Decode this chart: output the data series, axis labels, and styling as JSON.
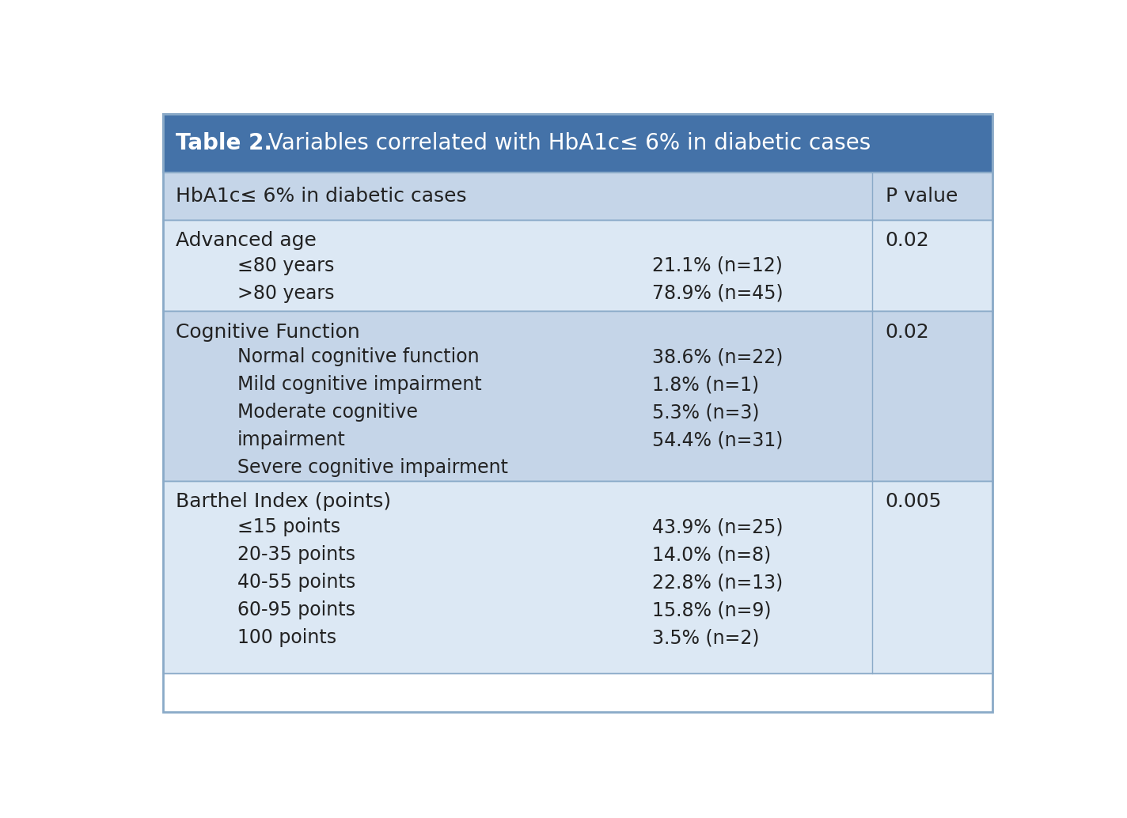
{
  "title_bold": "Table 2.",
  "title_rest": " Variables correlated with HbA1c≤ 6% in diabetic cases",
  "title_bg": "#4472a8",
  "title_color": "#ffffff",
  "header_bg": "#c5d5e8",
  "row_bg_1": "#dce8f4",
  "row_bg_2": "#c5d5e8",
  "border_color": "#8aaac8",
  "text_color": "#1a1a2e",
  "col1_header": "HbA1c≤ 6% in diabetic cases",
  "col3_header": "P value",
  "sections": [
    {
      "header": "Advanced age",
      "subrows": [
        [
          "≤80 years",
          "21.1% (n=12)"
        ],
        [
          ">80 years",
          "78.9% (n=45)"
        ]
      ],
      "p_value": "0.02",
      "bg": "row_bg_1"
    },
    {
      "header": "Cognitive Function",
      "subrows": [
        [
          "Normal cognitive function",
          "38.6% (n=22)"
        ],
        [
          "Mild cognitive impairment",
          "1.8% (n=1)"
        ],
        [
          "Moderate cognitive",
          "5.3% (n=3)"
        ],
        [
          "impairment",
          "54.4% (n=31)"
        ],
        [
          "Severe cognitive impairment",
          ""
        ]
      ],
      "p_value": "0.02",
      "bg": "row_bg_2"
    },
    {
      "header": "Barthel Index (points)",
      "subrows": [
        [
          "≤15 points",
          "43.9% (n=25)"
        ],
        [
          "20-35 points",
          "14.0% (n=8)"
        ],
        [
          "40-55 points",
          "22.8% (n=13)"
        ],
        [
          "60-95 points",
          "15.8% (n=9)"
        ],
        [
          "100 points",
          "3.5% (n=2)"
        ]
      ],
      "p_value": "0.005",
      "bg": "row_bg_1"
    }
  ],
  "fig_width": 14.24,
  "fig_height": 10.34,
  "dpi": 100
}
